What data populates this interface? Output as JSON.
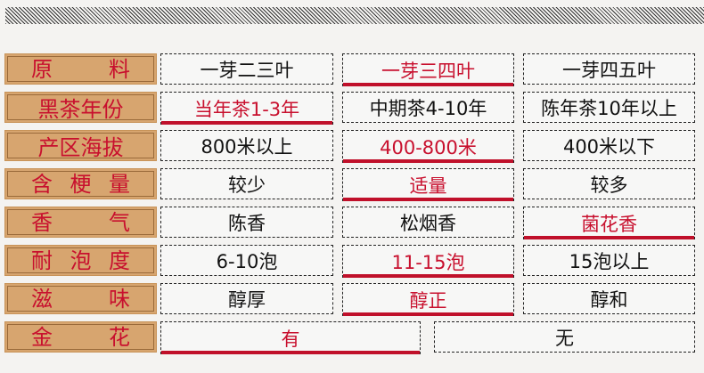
{
  "accent": "#c8102e",
  "rows": [
    {
      "label": "原料",
      "spread": true,
      "cells": [
        "一芽二三叶",
        "一芽三四叶",
        "一芽四五叶"
      ],
      "selected": 1
    },
    {
      "label": "黑茶年份",
      "spread": false,
      "cells": [
        "当年茶1-3年",
        "中期茶4-10年",
        "陈年茶10年以上"
      ],
      "selected": 0
    },
    {
      "label": "产区海拔",
      "spread": false,
      "cells": [
        "800米以上",
        "400-800米",
        "400米以下"
      ],
      "selected": 1
    },
    {
      "label": "含梗量",
      "spread": true,
      "cells": [
        "较少",
        "适量",
        "较多"
      ],
      "selected": 1
    },
    {
      "label": "香气",
      "spread": true,
      "cells": [
        "陈香",
        "松烟香",
        "菌花香"
      ],
      "selected": 2
    },
    {
      "label": "耐泡度",
      "spread": true,
      "cells": [
        "6-10泡",
        "11-15泡",
        "15泡以上"
      ],
      "selected": 1
    },
    {
      "label": "滋味",
      "spread": true,
      "cells": [
        "醇厚",
        "醇正",
        "醇和"
      ],
      "selected": 1
    },
    {
      "label": "金花",
      "spread": true,
      "cells": [
        "有",
        "无"
      ],
      "selected": 0
    }
  ]
}
